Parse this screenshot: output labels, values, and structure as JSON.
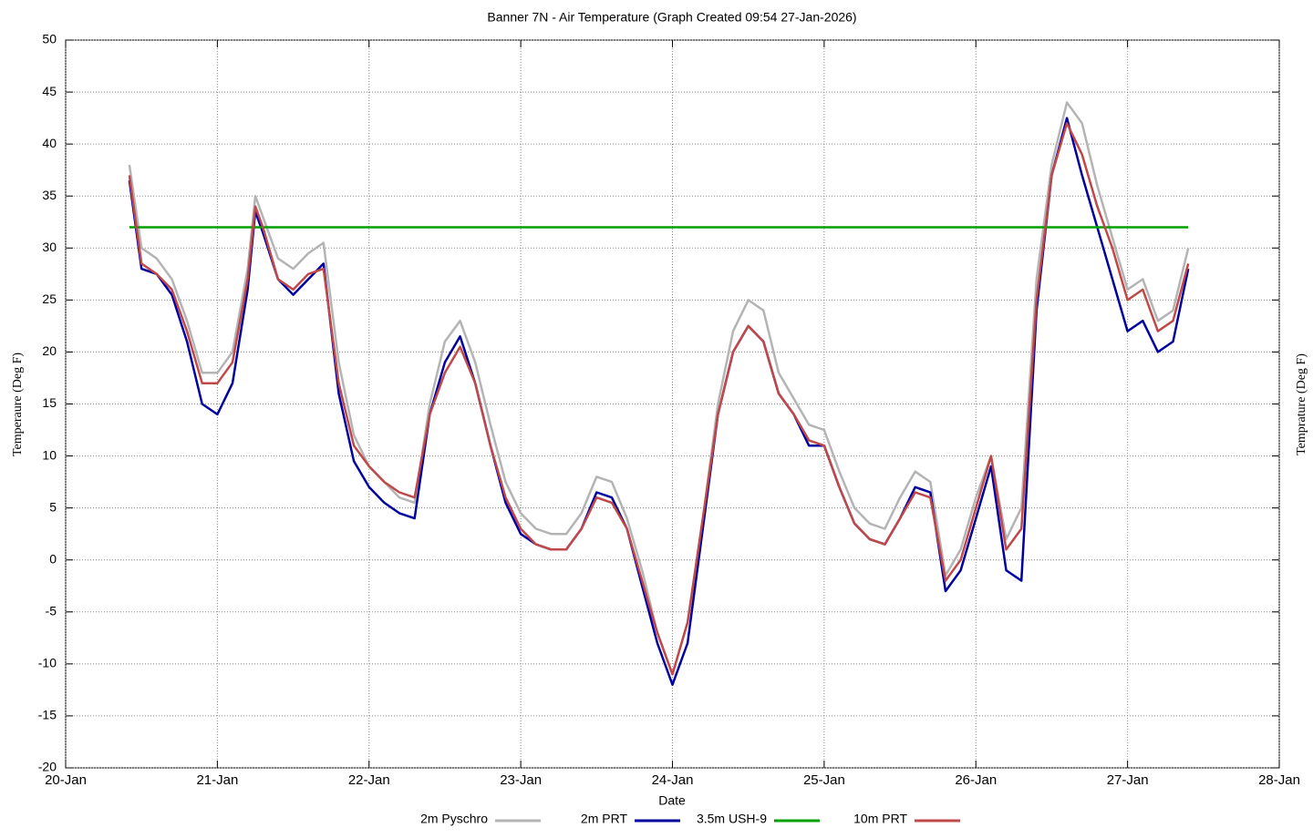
{
  "chart_data": {
    "type": "line",
    "title": "Banner 7N - Air Temperature (Graph Created 09:54 27-Jan-2026)",
    "xlabel": "Date",
    "ylabel": "Temperaure (Deg F)",
    "y2label": "Temprature (Deg F)",
    "xlim": [
      20,
      28
    ],
    "xticks": [
      {
        "value": 20,
        "label": "20-Jan"
      },
      {
        "value": 21,
        "label": "21-Jan"
      },
      {
        "value": 22,
        "label": "22-Jan"
      },
      {
        "value": 23,
        "label": "23-Jan"
      },
      {
        "value": 24,
        "label": "24-Jan"
      },
      {
        "value": 25,
        "label": "25-Jan"
      },
      {
        "value": 26,
        "label": "26-Jan"
      },
      {
        "value": 27,
        "label": "27-Jan"
      },
      {
        "value": 28,
        "label": "28-Jan"
      }
    ],
    "ylim": [
      -20,
      50
    ],
    "yticks": [
      -20,
      -15,
      -10,
      -5,
      0,
      5,
      10,
      15,
      20,
      25,
      30,
      35,
      40,
      45,
      50
    ],
    "grid": true,
    "legend": "bottom",
    "series": [
      {
        "name": "2m Pyschro",
        "color": "#b4b4b4",
        "x": [
          20.42,
          20.5,
          20.6,
          20.7,
          20.8,
          20.9,
          21.0,
          21.1,
          21.2,
          21.25,
          21.3,
          21.4,
          21.5,
          21.6,
          21.7,
          21.8,
          21.9,
          22.0,
          22.1,
          22.2,
          22.3,
          22.4,
          22.5,
          22.6,
          22.7,
          22.8,
          22.9,
          23.0,
          23.1,
          23.2,
          23.3,
          23.4,
          23.5,
          23.6,
          23.7,
          23.8,
          23.9,
          24.0,
          24.1,
          24.2,
          24.3,
          24.4,
          24.5,
          24.6,
          24.7,
          24.8,
          24.9,
          25.0,
          25.1,
          25.2,
          25.3,
          25.4,
          25.5,
          25.6,
          25.7,
          25.8,
          25.9,
          26.0,
          26.1,
          26.2,
          26.3,
          26.4,
          26.5,
          26.6,
          26.7,
          26.8,
          26.9,
          27.0,
          27.1,
          27.2,
          27.3,
          27.4
        ],
        "values": [
          38,
          30,
          29,
          27,
          23,
          18,
          18,
          20,
          28,
          35,
          33,
          29,
          28,
          29.5,
          30.5,
          19,
          12,
          9,
          7.5,
          6,
          5.5,
          15,
          21,
          23,
          19,
          13,
          7.5,
          4.5,
          3,
          2.5,
          2.5,
          4.5,
          8,
          7.5,
          4,
          -1,
          -7,
          -11,
          -6,
          4,
          15,
          22,
          25,
          24,
          18,
          15.5,
          13,
          12.5,
          8.5,
          5,
          3.5,
          3,
          6,
          8.5,
          7.5,
          -1.5,
          1,
          6,
          10,
          2,
          5,
          27,
          38,
          44,
          42,
          36,
          31,
          26,
          27,
          23,
          24,
          30
        ]
      },
      {
        "name": "2m PRT",
        "color": "#0000a0",
        "x": [
          20.42,
          20.5,
          20.6,
          20.7,
          20.8,
          20.9,
          21.0,
          21.1,
          21.2,
          21.25,
          21.3,
          21.4,
          21.5,
          21.6,
          21.7,
          21.8,
          21.9,
          22.0,
          22.1,
          22.2,
          22.3,
          22.4,
          22.5,
          22.6,
          22.7,
          22.8,
          22.9,
          23.0,
          23.1,
          23.2,
          23.3,
          23.4,
          23.5,
          23.6,
          23.7,
          23.8,
          23.9,
          24.0,
          24.1,
          24.2,
          24.3,
          24.4,
          24.5,
          24.6,
          24.7,
          24.8,
          24.9,
          25.0,
          25.1,
          25.2,
          25.3,
          25.4,
          25.5,
          25.6,
          25.7,
          25.8,
          25.9,
          26.0,
          26.1,
          26.2,
          26.3,
          26.4,
          26.5,
          26.6,
          26.7,
          26.8,
          26.9,
          27.0,
          27.1,
          27.2,
          27.3,
          27.4
        ],
        "values": [
          36.5,
          28,
          27.5,
          25.5,
          21,
          15,
          14,
          17,
          26,
          33.5,
          31.5,
          27,
          25.5,
          27,
          28.5,
          16,
          9.5,
          7,
          5.5,
          4.5,
          4,
          14,
          19,
          21.5,
          17,
          11,
          5.5,
          2.5,
          1.5,
          1,
          1,
          3,
          6.5,
          6,
          3,
          -2.5,
          -8,
          -12,
          -8,
          3,
          14,
          20,
          22.5,
          21,
          16,
          14,
          11,
          11,
          7,
          3.5,
          2,
          1.5,
          4,
          7,
          6.5,
          -3,
          -1,
          4,
          9,
          -1,
          -2,
          24,
          37,
          42.5,
          37,
          32,
          27,
          22,
          23,
          20,
          21,
          28
        ]
      },
      {
        "name": "3.5m USH-9",
        "color": "#00a000",
        "x": [
          20.42,
          27.4
        ],
        "values": [
          32,
          32
        ]
      },
      {
        "name": "10m PRT",
        "color": "#c04848",
        "x": [
          20.42,
          20.5,
          20.6,
          20.7,
          20.8,
          20.9,
          21.0,
          21.1,
          21.2,
          21.25,
          21.3,
          21.4,
          21.5,
          21.6,
          21.7,
          21.8,
          21.9,
          22.0,
          22.1,
          22.2,
          22.3,
          22.4,
          22.5,
          22.6,
          22.7,
          22.8,
          22.9,
          23.0,
          23.1,
          23.2,
          23.3,
          23.4,
          23.5,
          23.6,
          23.7,
          23.8,
          23.9,
          24.0,
          24.1,
          24.2,
          24.3,
          24.4,
          24.5,
          24.6,
          24.7,
          24.8,
          24.9,
          25.0,
          25.1,
          25.2,
          25.3,
          25.4,
          25.5,
          25.6,
          25.7,
          25.8,
          25.9,
          26.0,
          26.1,
          26.2,
          26.3,
          26.4,
          26.5,
          26.6,
          26.7,
          26.8,
          26.9,
          27.0,
          27.1,
          27.2,
          27.3,
          27.4
        ],
        "values": [
          37,
          28.5,
          27.5,
          26,
          22,
          17,
          17,
          19,
          27,
          34,
          32,
          27,
          26,
          27.5,
          28,
          17,
          11,
          9,
          7.5,
          6.5,
          6,
          14,
          18,
          20.5,
          17,
          11,
          6,
          3,
          1.5,
          1,
          1,
          3,
          6,
          5.5,
          3,
          -2,
          -7,
          -11,
          -6,
          4,
          14,
          20,
          22.5,
          21,
          16,
          14,
          11.5,
          11,
          7,
          3.5,
          2,
          1.5,
          4,
          6.5,
          6,
          -2,
          0,
          5,
          10,
          1,
          3,
          25,
          37,
          42,
          39,
          34,
          30,
          25,
          26,
          22,
          23,
          28.5
        ]
      }
    ]
  }
}
